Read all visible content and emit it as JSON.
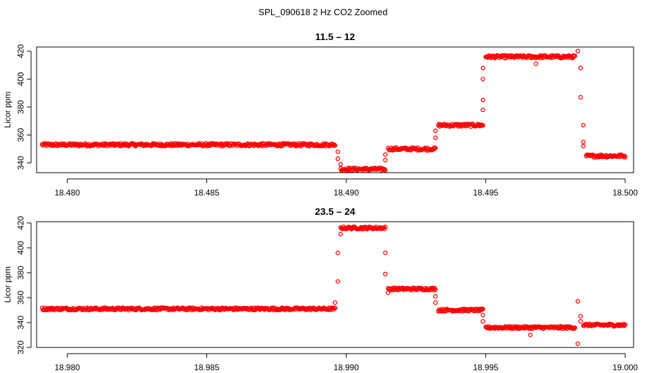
{
  "figure_title": "SPL_090618 2 Hz CO2 Zoomed",
  "chart_data": [
    {
      "type": "scatter",
      "title": "11.5 – 12",
      "xlabel": "",
      "ylabel": "Licor ppm",
      "xlim": [
        18.4789,
        18.5003
      ],
      "ylim": [
        333,
        423
      ],
      "xticks": [
        18.48,
        18.485,
        18.49,
        18.495,
        18.5
      ],
      "xtick_labels": [
        "18.480",
        "18.485",
        "18.490",
        "18.495",
        "18.500"
      ],
      "yticks": [
        340,
        360,
        380,
        400,
        420
      ],
      "ytick_labels": [
        "340",
        "360",
        "380",
        "400",
        "420"
      ],
      "marker_color": "#ff0000",
      "grid": false,
      "segments": [
        {
          "x_start": 18.4791,
          "x_end": 18.4896,
          "level": 353
        },
        {
          "x_start": 18.4898,
          "x_end": 18.4914,
          "level": 335.5
        },
        {
          "x_start": 18.4915,
          "x_end": 18.4932,
          "level": 350
        },
        {
          "x_start": 18.4933,
          "x_end": 18.4949,
          "level": 367
        },
        {
          "x_start": 18.495,
          "x_end": 18.4982,
          "level": 416
        },
        {
          "x_start": 18.4986,
          "x_end": 18.5,
          "level": 345
        }
      ],
      "outliers": [
        {
          "x": 18.4897,
          "y": 348
        },
        {
          "x": 18.4897,
          "y": 343
        },
        {
          "x": 18.4898,
          "y": 339
        },
        {
          "x": 18.4914,
          "y": 342
        },
        {
          "x": 18.4914,
          "y": 346
        },
        {
          "x": 18.4932,
          "y": 358
        },
        {
          "x": 18.4932,
          "y": 363
        },
        {
          "x": 18.4949,
          "y": 378
        },
        {
          "x": 18.4949,
          "y": 385
        },
        {
          "x": 18.4949,
          "y": 400
        },
        {
          "x": 18.4949,
          "y": 408
        },
        {
          "x": 18.4968,
          "y": 411
        },
        {
          "x": 18.4983,
          "y": 420
        },
        {
          "x": 18.4984,
          "y": 408
        },
        {
          "x": 18.4984,
          "y": 387
        },
        {
          "x": 18.4985,
          "y": 367
        },
        {
          "x": 18.4985,
          "y": 355
        },
        {
          "x": 18.4985,
          "y": 352
        }
      ]
    },
    {
      "type": "scatter",
      "title": "23.5 – 24",
      "xlabel": "",
      "ylabel": "Licor ppm",
      "xlim": [
        18.9789,
        19.0003
      ],
      "ylim": [
        320,
        421
      ],
      "xticks": [
        18.98,
        18.985,
        18.99,
        18.995,
        19.0
      ],
      "xtick_labels": [
        "18.980",
        "18.985",
        "18.990",
        "18.995",
        "19.000"
      ],
      "yticks": [
        320,
        340,
        360,
        380,
        400,
        420
      ],
      "ytick_labels": [
        "320",
        "340",
        "360",
        "380",
        "400",
        "420"
      ],
      "marker_color": "#ff0000",
      "grid": false,
      "segments": [
        {
          "x_start": 18.9791,
          "x_end": 18.9896,
          "level": 351
        },
        {
          "x_start": 18.9898,
          "x_end": 18.9914,
          "level": 416
        },
        {
          "x_start": 18.9915,
          "x_end": 18.9932,
          "level": 367
        },
        {
          "x_start": 18.9933,
          "x_end": 18.9949,
          "level": 350
        },
        {
          "x_start": 18.995,
          "x_end": 18.9982,
          "level": 336
        },
        {
          "x_start": 18.9985,
          "x_end": 19.0,
          "level": 338
        }
      ],
      "outliers": [
        {
          "x": 18.9896,
          "y": 356
        },
        {
          "x": 18.9897,
          "y": 373
        },
        {
          "x": 18.9897,
          "y": 396
        },
        {
          "x": 18.9898,
          "y": 411
        },
        {
          "x": 18.9914,
          "y": 396
        },
        {
          "x": 18.9914,
          "y": 379
        },
        {
          "x": 18.9915,
          "y": 364
        },
        {
          "x": 18.9932,
          "y": 361
        },
        {
          "x": 18.9932,
          "y": 356
        },
        {
          "x": 18.9949,
          "y": 346
        },
        {
          "x": 18.9949,
          "y": 341
        },
        {
          "x": 18.9966,
          "y": 330
        },
        {
          "x": 18.9983,
          "y": 357
        },
        {
          "x": 18.9983,
          "y": 323
        },
        {
          "x": 18.9984,
          "y": 345
        },
        {
          "x": 18.9984,
          "y": 341
        }
      ]
    }
  ]
}
